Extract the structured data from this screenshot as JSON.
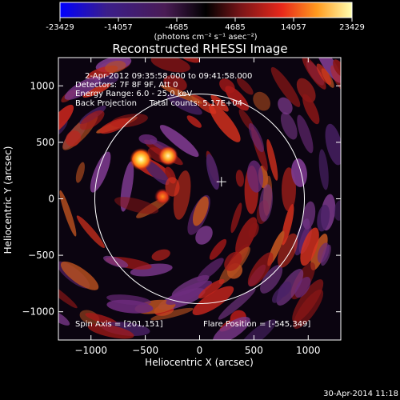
{
  "colorbar": {
    "ticks": [
      "-23429",
      "-14057",
      "-4685",
      "4685",
      "14057",
      "23429"
    ],
    "unit_label": "(photons cm⁻² s⁻¹ asec⁻²)"
  },
  "chart_data": {
    "type": "heatmap",
    "title": "Reconstructed RHESSI Image",
    "xlabel": "Heliocentric X (arcsec)",
    "ylabel": "Heliocentric Y (arcsec)",
    "xlim": [
      -1300,
      1300
    ],
    "ylim": [
      -1250,
      1250
    ],
    "x_ticks": [
      -1000,
      -500,
      0,
      500,
      1000
    ],
    "y_ticks": [
      -1000,
      -500,
      0,
      500,
      1000
    ],
    "x_tick_labels": [
      "−1000",
      "−500",
      "0",
      "500",
      "1000"
    ],
    "y_tick_labels": [
      "−1000",
      "−500",
      "0",
      "500",
      "1000"
    ],
    "value_range": [
      -23429,
      23429
    ],
    "solar_disk": {
      "center": [
        0,
        0
      ],
      "radius_arcsec": 965
    },
    "sources": [
      {
        "x": -540,
        "y": 350,
        "peak": 23429
      },
      {
        "x": -290,
        "y": 380,
        "peak": 17000
      },
      {
        "x": -340,
        "y": 20,
        "peak": 9000
      }
    ],
    "spin_axis_marker": {
      "x": 201,
      "y": 151
    },
    "annotations": {
      "time_range": "2-Apr-2012 09:35:58.000 to 09:41:58.000",
      "detectors": "Detectors: 7F 8F 9F, Att 0",
      "energy_range": "Energy Range: 6.0 - 25.0 keV",
      "method_counts": "Back Projection     Total counts: 5.17E+04",
      "spin_axis": "Spin Axis = [201,151]",
      "flare_position": "Flare Position = [-545,349]"
    },
    "colors": {
      "background": "#000000",
      "axes": "#ffffff"
    }
  },
  "footer": {
    "timestamp": "30-Apr-2014 11:18"
  }
}
